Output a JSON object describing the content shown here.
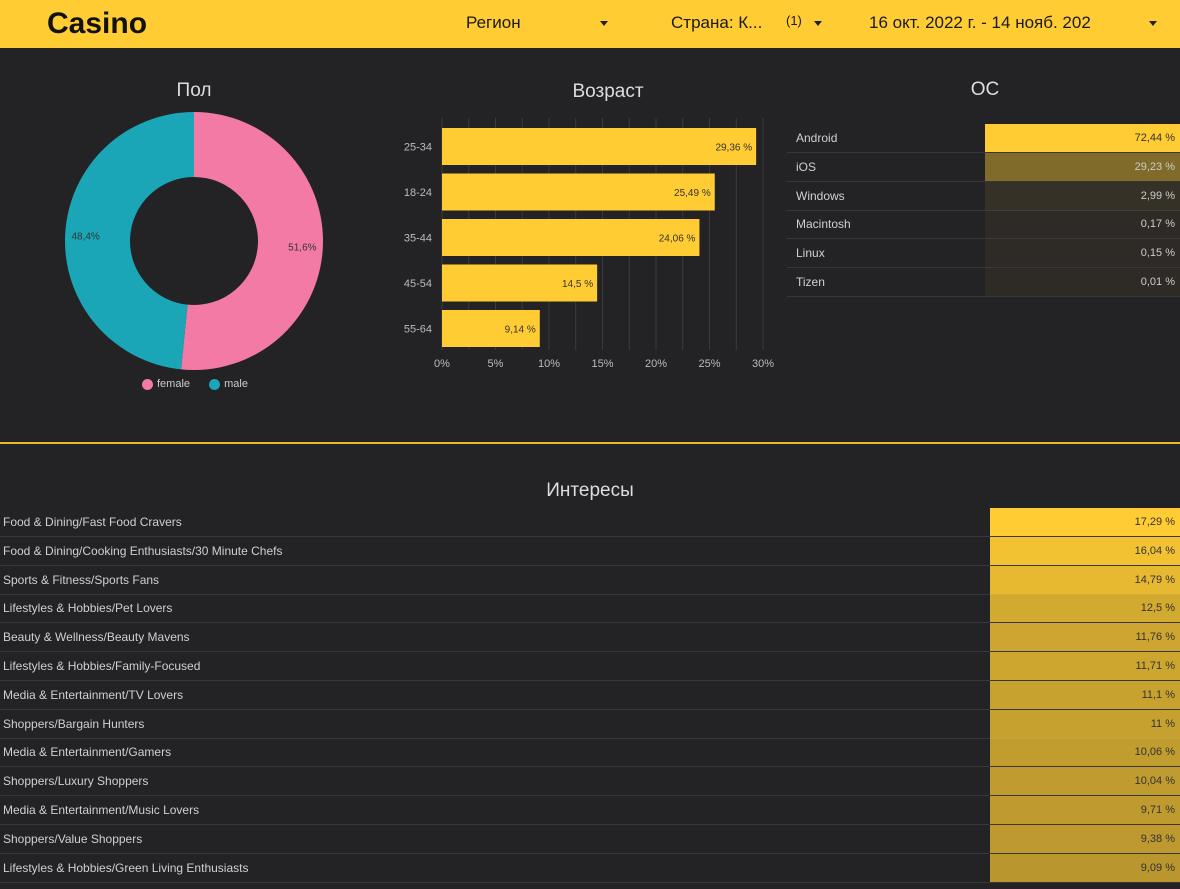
{
  "header": {
    "title": "Casino",
    "filters": {
      "region": "Регион",
      "country": "Страна: К...",
      "country_count": "(1)",
      "date_range": "16 окт. 2022 г. - 14 нояб. 202"
    }
  },
  "colors": {
    "accent": "#ffcc33",
    "female": "#f47aa6",
    "male": "#1aa6b7",
    "background": "#232326"
  },
  "chart_data": [
    {
      "type": "pie",
      "title": "Пол",
      "donut": true,
      "series": [
        {
          "name": "female",
          "value": 51.6,
          "label": "51,6%",
          "color": "#f47aa6"
        },
        {
          "name": "male",
          "value": 48.4,
          "label": "48,4%",
          "color": "#1aa6b7"
        }
      ],
      "legend_position": "bottom"
    },
    {
      "type": "bar",
      "orientation": "horizontal",
      "title": "Возраст",
      "categories": [
        "25-34",
        "18-24",
        "35-44",
        "45-54",
        "55-64"
      ],
      "values": [
        29.36,
        25.49,
        24.06,
        14.5,
        9.14
      ],
      "value_labels": [
        "29,36 %",
        "25,49 %",
        "24,06 %",
        "14,5 %",
        "9,14 %"
      ],
      "xlim": [
        0,
        30
      ],
      "x_ticks": [
        "0%",
        "5%",
        "10%",
        "15%",
        "20%",
        "25%",
        "30%"
      ],
      "grid": true
    },
    {
      "type": "table",
      "title": "ОС",
      "rows": [
        {
          "label": "Android",
          "value": 72.44,
          "display": "72,44 %"
        },
        {
          "label": "iOS",
          "value": 29.23,
          "display": "29,23 %"
        },
        {
          "label": "Windows",
          "value": 2.99,
          "display": "2,99 %"
        },
        {
          "label": "Macintosh",
          "value": 0.17,
          "display": "0,17 %"
        },
        {
          "label": "Linux",
          "value": 0.15,
          "display": "0,15 %"
        },
        {
          "label": "Tizen",
          "value": 0.01,
          "display": "0,01 %"
        }
      ]
    },
    {
      "type": "table",
      "title": "Интересы",
      "rows": [
        {
          "label": "Food & Dining/Fast Food Cravers",
          "value": 17.29,
          "display": "17,29 %"
        },
        {
          "label": "Food & Dining/Cooking Enthusiasts/30 Minute Chefs",
          "value": 16.04,
          "display": "16,04 %"
        },
        {
          "label": "Sports & Fitness/Sports Fans",
          "value": 14.79,
          "display": "14,79 %"
        },
        {
          "label": "Lifestyles & Hobbies/Pet Lovers",
          "value": 12.5,
          "display": "12,5 %"
        },
        {
          "label": "Beauty & Wellness/Beauty Mavens",
          "value": 11.76,
          "display": "11,76 %"
        },
        {
          "label": "Lifestyles & Hobbies/Family-Focused",
          "value": 11.71,
          "display": "11,71 %"
        },
        {
          "label": "Media & Entertainment/TV Lovers",
          "value": 11.1,
          "display": "11,1 %"
        },
        {
          "label": "Shoppers/Bargain Hunters",
          "value": 11,
          "display": "11 %"
        },
        {
          "label": "Media & Entertainment/Gamers",
          "value": 10.06,
          "display": "10,06 %"
        },
        {
          "label": "Shoppers/Luxury Shoppers",
          "value": 10.04,
          "display": "10,04 %"
        },
        {
          "label": "Media & Entertainment/Music Lovers",
          "value": 9.71,
          "display": "9,71 %"
        },
        {
          "label": "Shoppers/Value Shoppers",
          "value": 9.38,
          "display": "9,38 %"
        },
        {
          "label": "Lifestyles & Hobbies/Green Living Enthusiasts",
          "value": 9.09,
          "display": "9,09 %"
        }
      ]
    }
  ]
}
